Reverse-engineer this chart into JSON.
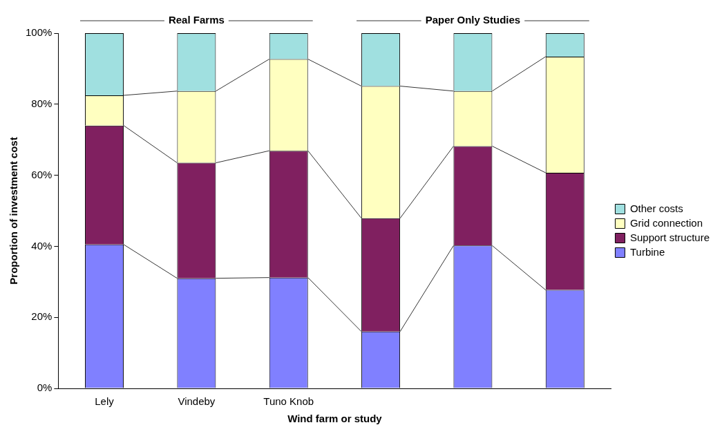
{
  "chart_data": {
    "type": "bar",
    "stacked": true,
    "xlabel": "Wind farm or study",
    "ylabel": "Proportion of investment cost",
    "categories": [
      "Lely",
      "Vindeby",
      "Tuno Knob",
      null,
      null,
      null
    ],
    "series": [
      {
        "name": "Turbine",
        "color": "#8080ff",
        "values": [
          40.5,
          31,
          31.2,
          16,
          40.2,
          27.7
        ]
      },
      {
        "name": "Support structure",
        "color": "#802060",
        "values": [
          33.5,
          32.5,
          35.7,
          31.9,
          28,
          33
        ]
      },
      {
        "name": "Grid connection",
        "color": "#ffffc0",
        "values": [
          8.5,
          20.2,
          25.8,
          37.2,
          15.5,
          32.7
        ]
      },
      {
        "name": "Other costs",
        "color": "#a0e0e0",
        "values": [
          17.5,
          16.3,
          7.3,
          14.9,
          16.3,
          6.6
        ]
      }
    ],
    "ylim": [
      0,
      100
    ],
    "yticks": [
      {
        "value": 0,
        "label": "0%"
      },
      {
        "value": 20,
        "label": "20%"
      },
      {
        "value": 40,
        "label": "40%"
      },
      {
        "value": 60,
        "label": "60%"
      },
      {
        "value": 80,
        "label": "80%"
      },
      {
        "value": 100,
        "label": "100%"
      }
    ],
    "grid": false,
    "legend": "right",
    "annotations": [
      "Real Farms",
      "Paper Only Studies"
    ]
  }
}
